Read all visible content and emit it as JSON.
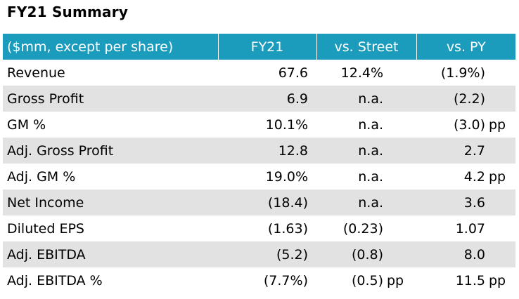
{
  "title": "FY21 Summary",
  "header": {
    "label": "($mm, except per share)",
    "col1": "FY21",
    "col2": "vs. Street",
    "col3": "vs. PY"
  },
  "rows": [
    {
      "label": "Revenue",
      "fy21": "67.6",
      "street": "12.4%",
      "street_unit": "",
      "py": "(1.9%)",
      "py_unit": ""
    },
    {
      "label": "Gross Profit",
      "fy21": "6.9",
      "street": "n.a.",
      "street_unit": "",
      "py": "(2.2)",
      "py_unit": ""
    },
    {
      "label": "GM %",
      "fy21": "10.1%",
      "street": "n.a.",
      "street_unit": "",
      "py": "(3.0)",
      "py_unit": "pp"
    },
    {
      "label": "Adj. Gross Profit",
      "fy21": "12.8",
      "street": "n.a.",
      "street_unit": "",
      "py": "2.7",
      "py_unit": ""
    },
    {
      "label": "Adj. GM %",
      "fy21": "19.0%",
      "street": "n.a.",
      "street_unit": "",
      "py": "4.2",
      "py_unit": "pp"
    },
    {
      "label": "Net Income",
      "fy21": "(18.4)",
      "street": "n.a.",
      "street_unit": "",
      "py": "3.6",
      "py_unit": ""
    },
    {
      "label": "Diluted EPS",
      "fy21": "(1.63)",
      "street": "(0.23)",
      "street_unit": "",
      "py": "1.07",
      "py_unit": ""
    },
    {
      "label": "Adj. EBITDA",
      "fy21": "(5.2)",
      "street": "(0.8)",
      "street_unit": "",
      "py": "8.0",
      "py_unit": ""
    },
    {
      "label": "Adj. EBITDA %",
      "fy21": "(7.7%)",
      "street": "(0.5)",
      "street_unit": "pp",
      "py": "11.5",
      "py_unit": "pp"
    }
  ],
  "colors": {
    "header_bg": "#1c9cbc",
    "stripe_bg": "#e2e2e2"
  }
}
